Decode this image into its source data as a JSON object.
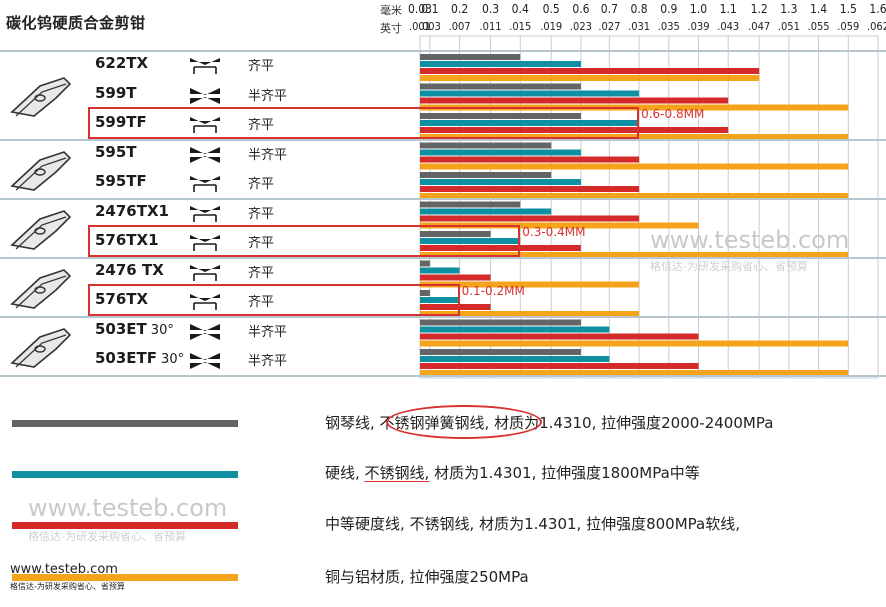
{
  "title": "碳化钨硬质合金剪钳",
  "units": {
    "mm": "毫米",
    "inch": "英寸"
  },
  "chart_data": {
    "type": "bar",
    "orientation": "horizontal",
    "x_ticks_mm": [
      "0.03",
      "0.1",
      "0.2",
      "0.3",
      "0.4",
      "0.5",
      "0.6",
      "0.7",
      "0.8",
      "0.9",
      "1.0",
      "1.1",
      "1.2",
      "1.3",
      "1.4",
      "1.5",
      "1.6"
    ],
    "x_ticks_in": [
      ".001",
      ".003",
      ".007",
      ".011",
      ".015",
      ".019",
      ".023",
      ".027",
      ".031",
      ".035",
      ".039",
      ".043",
      ".047",
      ".051",
      ".055",
      ".059",
      ".062"
    ],
    "xlim_mm": [
      0.03,
      1.6
    ],
    "grid": true,
    "series": [
      {
        "name": "钢琴线, 不锈钢弹簧钢线, 材质为1.4310, 拉伸强度2000-2400MPa",
        "color": "#636466"
      },
      {
        "name": "硬线, 不锈钢线, 材质为1.4301, 拉伸强度1800MPa中等",
        "color": "#0e8fa2"
      },
      {
        "name": "中等硬度线, 不锈钢线, 材质为1.4301, 拉伸强度800MPa软线,",
        "color": "#d42a2a"
      },
      {
        "name": "铜与铝材质, 拉伸强度250MPa",
        "color": "#f5a31a"
      }
    ],
    "categories": [
      "622TX",
      "599T",
      "599TF",
      "595T",
      "595TF",
      "2476TX1",
      "576TX1",
      "2476 TX",
      "576TX",
      "503ET",
      "503ETF"
    ],
    "values_mm": [
      [
        0.4,
        0.6,
        1.2,
        1.2
      ],
      [
        0.6,
        0.8,
        1.1,
        1.5
      ],
      [
        0.6,
        0.8,
        1.1,
        1.5
      ],
      [
        0.5,
        0.6,
        0.8,
        1.5
      ],
      [
        0.5,
        0.6,
        0.8,
        1.5
      ],
      [
        0.4,
        0.5,
        0.8,
        1.0
      ],
      [
        0.3,
        0.4,
        0.6,
        1.5
      ],
      [
        0.1,
        0.2,
        0.3,
        0.8
      ],
      [
        0.1,
        0.2,
        0.3,
        0.8
      ],
      [
        0.6,
        0.7,
        1.0,
        1.5
      ],
      [
        0.6,
        0.7,
        1.0,
        1.5
      ]
    ]
  },
  "rows": [
    {
      "model": "622TX",
      "angle": "",
      "cut": "齐平",
      "sym": "flush"
    },
    {
      "model": "599T",
      "angle": "",
      "cut": "半齐平",
      "sym": "semi"
    },
    {
      "model": "599TF",
      "angle": "",
      "cut": "齐平",
      "sym": "flush"
    },
    {
      "model": "595T",
      "angle": "",
      "cut": "半齐平",
      "sym": "semi"
    },
    {
      "model": "595TF",
      "angle": "",
      "cut": "齐平",
      "sym": "flush"
    },
    {
      "model": "2476TX1",
      "angle": "",
      "cut": "齐平",
      "sym": "flush"
    },
    {
      "model": "576TX1",
      "angle": "",
      "cut": "齐平",
      "sym": "flush"
    },
    {
      "model": "2476 TX",
      "angle": "",
      "cut": "齐平",
      "sym": "flush"
    },
    {
      "model": "576TX",
      "angle": "",
      "cut": "齐平",
      "sym": "flush"
    },
    {
      "model": "503ET",
      "angle": "30°",
      "cut": "半齐平",
      "sym": "semi"
    },
    {
      "model": "503ETF",
      "angle": "30°",
      "cut": "半齐平",
      "sym": "semi"
    }
  ],
  "highlights": [
    {
      "label": "0.6-0.8MM"
    },
    {
      "label": "0.3-0.4MM"
    },
    {
      "label": "0.1-0.2MM"
    }
  ],
  "legend": [
    {
      "pre": "钢琴线, ",
      "u": "不锈钢弹簧钢线,",
      "post": " 材质为1.4310, 拉伸强度2000-2400MPa"
    },
    {
      "pre": "硬线, ",
      "u": "不锈钢线,",
      "post": " 材质为1.4301, 拉伸强度1800MPa中等"
    },
    {
      "pre": "中等硬度线, 不锈钢线, 材质为1.4301, 拉伸强度800MPa软线,",
      "u": "",
      "post": ""
    },
    {
      "pre": "铜与铝材质, 拉伸强度250MPa",
      "u": "",
      "post": ""
    }
  ],
  "watermarks": {
    "url": "www.testeb.com",
    "sub": "格信达-为研发采购省心、省预算"
  },
  "footer": {
    "url": "www.testeb.com",
    "sub": "格信达-为研发采购省心、省预算"
  },
  "icons": {
    "tool": "cutter-head-icon",
    "flush": "flush-cut-icon",
    "semi": "semi-flush-cut-icon"
  }
}
